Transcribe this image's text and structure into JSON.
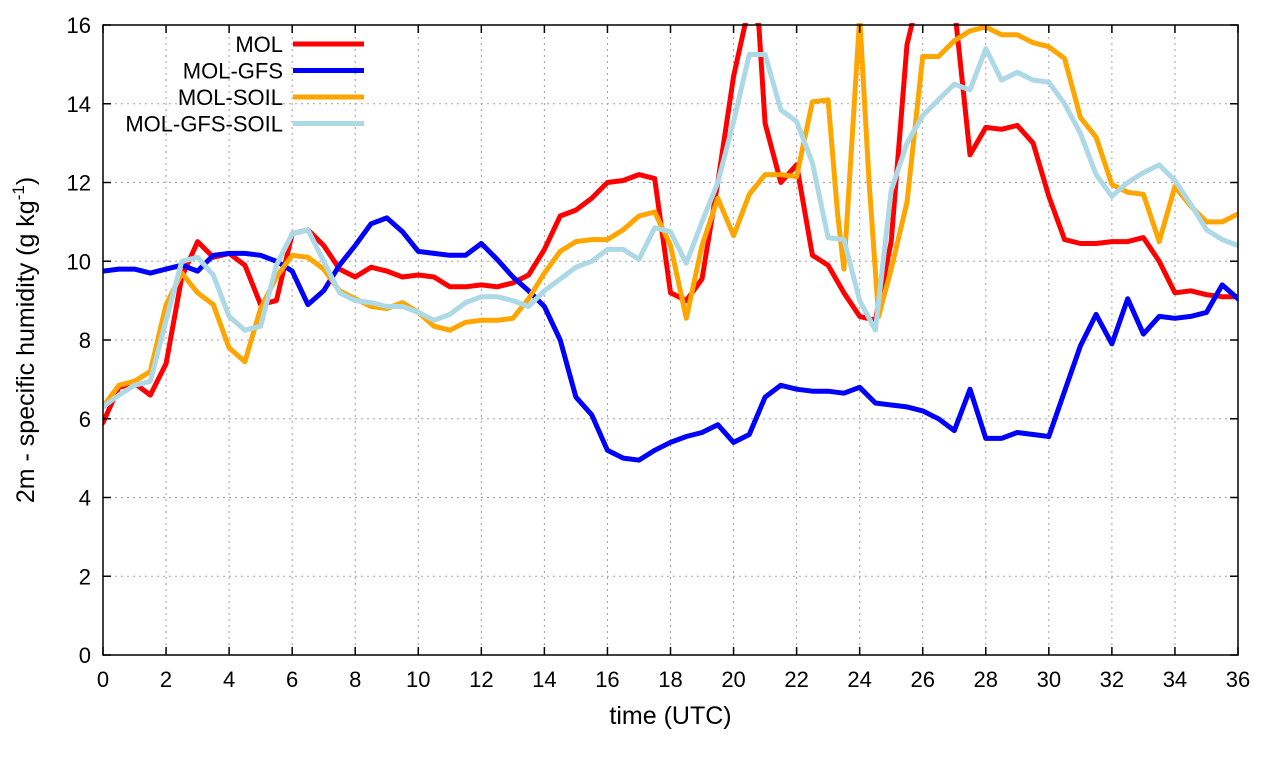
{
  "chart_data": {
    "type": "line",
    "xlabel": "time (UTC)",
    "ylabel": {
      "main": "2m - specific humidity (g kg",
      "superscript": "-1",
      "close": ")"
    },
    "xlim": [
      0,
      36
    ],
    "ylim": [
      0,
      16
    ],
    "xticks": [
      "0",
      "2",
      "4",
      "6",
      "8",
      "10",
      "12",
      "14",
      "16",
      "18",
      "20",
      "22",
      "24",
      "26",
      "28",
      "30",
      "32",
      "34",
      "36"
    ],
    "yticks": [
      "0",
      "2",
      "4",
      "6",
      "8",
      "10",
      "12",
      "14",
      "16"
    ],
    "grid": true,
    "legend_position": "top-left",
    "series": [
      {
        "name": "MOL",
        "color": "#ff0000",
        "x": [
          0,
          0.5,
          1,
          1.5,
          2,
          2.5,
          3,
          3.5,
          4,
          4.5,
          5,
          5.5,
          6,
          6.5,
          7,
          7.5,
          8,
          8.5,
          9,
          9.5,
          10,
          10.5,
          11,
          11.5,
          12,
          12.5,
          13,
          13.5,
          14,
          14.5,
          15,
          15.5,
          16,
          16.5,
          17,
          17.5,
          18,
          18.5,
          19,
          19.5,
          20,
          20.5,
          20.8,
          21,
          21.5,
          22,
          22.5,
          23,
          23.5,
          24,
          24.5,
          25,
          25.5,
          25.8,
          27,
          27.5,
          28,
          28.5,
          29,
          29.5,
          30,
          30.5,
          31,
          31.5,
          32,
          32.5,
          33,
          33.5,
          34,
          34.5,
          35,
          35.5,
          36
        ],
        "values": [
          5.9,
          6.8,
          6.9,
          6.6,
          7.4,
          9.6,
          10.5,
          10.1,
          10.2,
          9.9,
          8.9,
          9.0,
          10.7,
          10.8,
          10.4,
          9.8,
          9.6,
          9.85,
          9.75,
          9.6,
          9.65,
          9.6,
          9.35,
          9.35,
          9.4,
          9.35,
          9.45,
          9.65,
          10.3,
          11.15,
          11.3,
          11.6,
          12.0,
          12.05,
          12.2,
          12.1,
          9.2,
          9.0,
          9.55,
          12.0,
          14.7,
          16.5,
          16.0,
          13.5,
          12.0,
          12.45,
          10.15,
          9.9,
          9.2,
          8.6,
          8.5,
          10.5,
          15.5,
          16.5,
          16.5,
          12.7,
          13.4,
          13.35,
          13.45,
          13.0,
          11.65,
          10.55,
          10.45,
          10.45,
          10.5,
          10.5,
          10.6,
          10.0,
          9.2,
          9.25,
          9.15,
          9.1,
          9.1
        ]
      },
      {
        "name": "MOL-GFS",
        "color": "#0000ff",
        "x": [
          0,
          0.5,
          1,
          1.5,
          2,
          2.5,
          3,
          3.5,
          4,
          4.5,
          5,
          5.5,
          6,
          6.5,
          7,
          7.5,
          8,
          8.5,
          9,
          9.5,
          10,
          10.5,
          11,
          11.5,
          12,
          12.5,
          13,
          13.5,
          14,
          14.5,
          15,
          15.5,
          16,
          16.5,
          17,
          17.5,
          18,
          18.5,
          19,
          19.5,
          20,
          20.5,
          21,
          21.5,
          22,
          22.5,
          23,
          23.5,
          24,
          24.5,
          25,
          25.5,
          26,
          26.5,
          27,
          27.5,
          28,
          28.5,
          29,
          29.5,
          30,
          30.5,
          31,
          31.5,
          32,
          32.5,
          33,
          33.5,
          34,
          34.5,
          35,
          35.5,
          36
        ],
        "values": [
          9.75,
          9.8,
          9.8,
          9.7,
          9.8,
          9.9,
          9.75,
          10.15,
          10.2,
          10.2,
          10.15,
          10.0,
          9.75,
          8.9,
          9.25,
          9.9,
          10.4,
          10.95,
          11.1,
          10.75,
          10.25,
          10.2,
          10.15,
          10.15,
          10.45,
          10.05,
          9.6,
          9.25,
          8.85,
          8.0,
          6.55,
          6.1,
          5.2,
          5.0,
          4.95,
          5.2,
          5.4,
          5.55,
          5.65,
          5.85,
          5.4,
          5.6,
          6.55,
          6.85,
          6.75,
          6.7,
          6.7,
          6.65,
          6.8,
          6.4,
          6.35,
          6.3,
          6.2,
          6.0,
          5.7,
          6.75,
          5.5,
          5.5,
          5.65,
          5.6,
          5.55,
          6.7,
          7.85,
          8.65,
          7.9,
          9.05,
          8.15,
          8.6,
          8.55,
          8.6,
          8.7,
          9.4,
          9.05
        ]
      },
      {
        "name": "MOL-SOIL",
        "color": "#ffa500",
        "x": [
          0,
          0.5,
          1,
          1.5,
          2,
          2.5,
          3,
          3.5,
          4,
          4.5,
          5,
          5.5,
          6,
          6.5,
          7,
          7.5,
          8,
          8.5,
          9,
          9.5,
          10,
          10.5,
          11,
          11.5,
          12,
          12.5,
          13,
          13.5,
          14,
          14.5,
          15,
          15.5,
          16,
          16.5,
          17,
          17.5,
          18,
          18.5,
          19,
          19.5,
          20,
          20.5,
          21,
          21.5,
          22,
          22.5,
          23,
          23.3,
          23.5,
          24,
          24.3,
          24.6,
          25,
          25.5,
          26,
          26.5,
          27,
          27.5,
          28,
          28.5,
          29,
          29.5,
          30,
          30.5,
          31,
          31.5,
          32,
          32.5,
          33,
          33.5,
          34,
          34.5,
          35,
          35.5,
          36
        ],
        "values": [
          6.3,
          6.85,
          6.95,
          7.2,
          8.9,
          9.7,
          9.2,
          8.9,
          7.8,
          7.45,
          8.8,
          9.6,
          10.15,
          10.1,
          9.8,
          9.25,
          9.05,
          8.85,
          8.8,
          8.95,
          8.7,
          8.35,
          8.25,
          8.45,
          8.5,
          8.5,
          8.55,
          9.05,
          9.7,
          10.25,
          10.5,
          10.55,
          10.55,
          10.8,
          11.15,
          11.25,
          10.4,
          8.55,
          10.4,
          11.6,
          10.65,
          11.7,
          12.2,
          12.2,
          12.15,
          14.05,
          14.1,
          11.2,
          9.8,
          16.2,
          12.0,
          8.6,
          9.8,
          11.5,
          15.2,
          15.2,
          15.6,
          15.85,
          15.95,
          15.75,
          15.75,
          15.55,
          15.45,
          15.15,
          13.65,
          13.15,
          11.95,
          11.75,
          11.7,
          10.5,
          11.9,
          11.4,
          11.0,
          11.0,
          11.2
        ]
      },
      {
        "name": "MOL-GFS-SOIL",
        "color": "#add8e6",
        "x": [
          0,
          0.5,
          1,
          1.5,
          2,
          2.5,
          3,
          3.5,
          4,
          4.5,
          5,
          5.5,
          6,
          6.5,
          7,
          7.5,
          8,
          8.5,
          9,
          9.5,
          10,
          10.5,
          11,
          11.5,
          12,
          12.5,
          13,
          13.5,
          14,
          14.5,
          15,
          15.5,
          16,
          16.5,
          17,
          17.5,
          18,
          18.5,
          19,
          19.5,
          20,
          20.5,
          21,
          21.5,
          22,
          22.5,
          23,
          23.5,
          24,
          24.5,
          25,
          25.5,
          26,
          26.5,
          27,
          27.5,
          28,
          28.5,
          29,
          29.5,
          30,
          30.5,
          31,
          31.5,
          32,
          32.5,
          33,
          33.5,
          34,
          34.5,
          35,
          35.5,
          36
        ],
        "values": [
          6.3,
          6.6,
          6.85,
          6.95,
          8.5,
          10.0,
          10.1,
          9.65,
          8.6,
          8.25,
          8.35,
          9.9,
          10.7,
          10.8,
          10.0,
          9.2,
          9.0,
          8.95,
          8.85,
          8.85,
          8.7,
          8.5,
          8.65,
          8.95,
          9.1,
          9.1,
          9.0,
          8.85,
          9.25,
          9.55,
          9.85,
          10.0,
          10.3,
          10.3,
          10.05,
          10.85,
          10.75,
          9.95,
          11.0,
          12.0,
          13.55,
          15.25,
          15.25,
          13.85,
          13.55,
          12.5,
          10.6,
          10.55,
          9.0,
          8.25,
          11.8,
          13.0,
          13.7,
          14.1,
          14.5,
          14.35,
          15.4,
          14.6,
          14.8,
          14.6,
          14.55,
          14.0,
          13.25,
          12.2,
          11.65,
          12.0,
          12.25,
          12.45,
          12.05,
          11.45,
          10.8,
          10.55,
          10.4
        ]
      }
    ]
  }
}
